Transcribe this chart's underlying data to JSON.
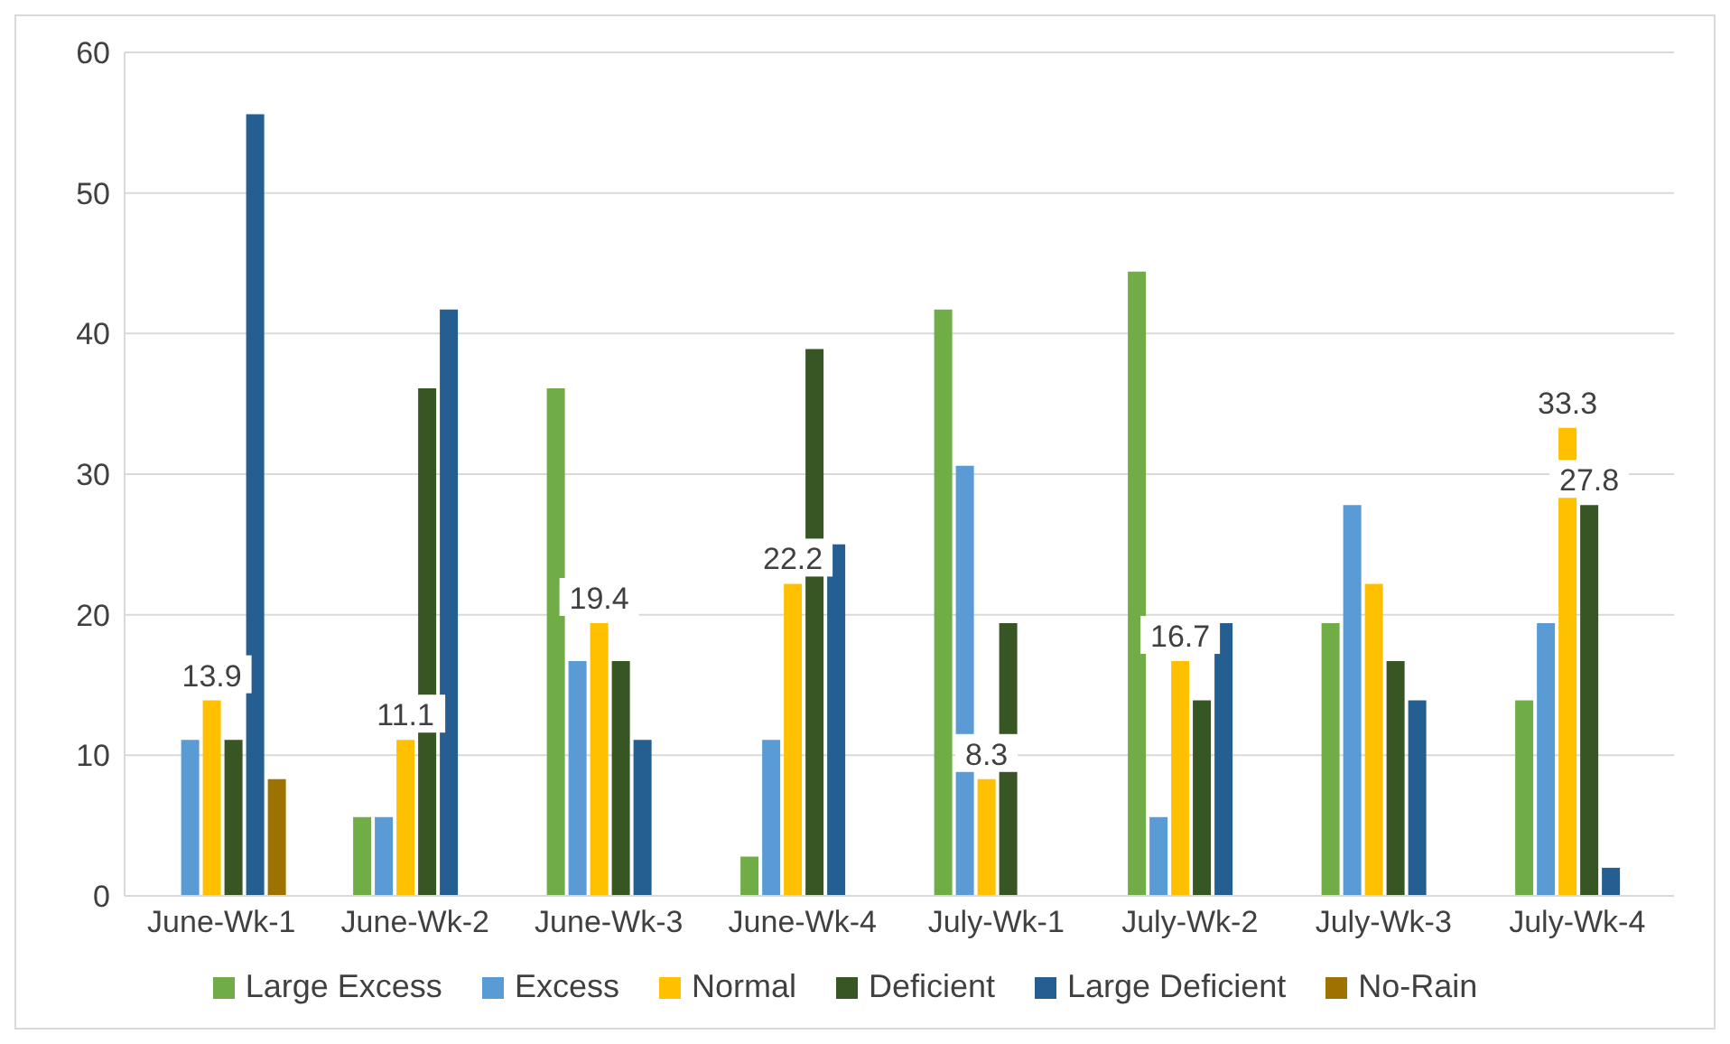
{
  "chart_data": {
    "type": "bar",
    "categories": [
      "June-Wk-1",
      "June-Wk-2",
      "June-Wk-3",
      "June-Wk-4",
      "July-Wk-1",
      "July-Wk-2",
      "July-Wk-3",
      "July-Wk-4"
    ],
    "series": [
      {
        "name": "Large Excess",
        "color": "#70ad47",
        "values": [
          0,
          5.6,
          36.1,
          2.8,
          41.7,
          44.4,
          19.4,
          13.9
        ]
      },
      {
        "name": "Excess",
        "color": "#5b9bd5",
        "values": [
          11.1,
          5.6,
          16.7,
          11.1,
          30.6,
          5.6,
          27.8,
          19.4
        ]
      },
      {
        "name": "Normal",
        "color": "#ffc000",
        "values": [
          13.9,
          11.1,
          19.4,
          22.2,
          8.3,
          16.7,
          22.2,
          33.3
        ],
        "value_labels": [
          "13.9",
          "11.1",
          "19.4",
          "22.2",
          "8.3",
          "16.7",
          null,
          "33.3"
        ]
      },
      {
        "name": "Deficient",
        "color": "#375623",
        "values": [
          11.1,
          36.1,
          16.7,
          38.9,
          19.4,
          13.9,
          16.7,
          27.8
        ],
        "value_labels": [
          null,
          null,
          null,
          null,
          null,
          null,
          null,
          "27.8"
        ]
      },
      {
        "name": "Large Deficient",
        "color": "#255e91",
        "values": [
          55.6,
          41.7,
          11.1,
          25,
          0,
          19.4,
          13.9,
          2
        ]
      },
      {
        "name": "No-Rain",
        "color": "#9e7200",
        "values": [
          8.3,
          0,
          0,
          0,
          0,
          0,
          0,
          0
        ]
      }
    ],
    "ylim": [
      0,
      60
    ],
    "yticks": [
      0,
      10,
      20,
      30,
      40,
      50,
      60
    ],
    "grid": "y",
    "legend": "bottom"
  }
}
